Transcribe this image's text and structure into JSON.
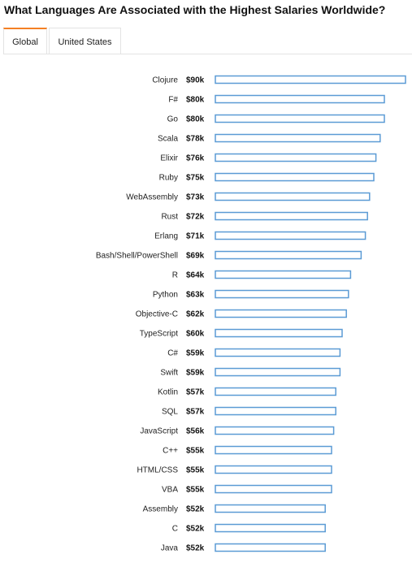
{
  "page": {
    "title": "What Languages Are Associated with the Highest Salaries Worldwide?"
  },
  "tabs": [
    {
      "label": "Global",
      "active": true
    },
    {
      "label": "United States",
      "active": false
    }
  ],
  "colors": {
    "accent": "#f48024",
    "bar_stroke": "#5b9bd5",
    "bar_fill": "#ffffff"
  },
  "chart_data": {
    "type": "bar",
    "orientation": "horizontal",
    "categories": [
      "Clojure",
      "F#",
      "Go",
      "Scala",
      "Elixir",
      "Ruby",
      "WebAssembly",
      "Rust",
      "Erlang",
      "Bash/Shell/PowerShell",
      "R",
      "Python",
      "Objective-C",
      "TypeScript",
      "C#",
      "Swift",
      "Kotlin",
      "SQL",
      "JavaScript",
      "C++",
      "HTML/CSS",
      "VBA",
      "Assembly",
      "C",
      "Java"
    ],
    "values": [
      90,
      80,
      80,
      78,
      76,
      75,
      73,
      72,
      71,
      69,
      64,
      63,
      62,
      60,
      59,
      59,
      57,
      57,
      56,
      55,
      55,
      55,
      52,
      52,
      52
    ],
    "value_labels": [
      "$90k",
      "$80k",
      "$80k",
      "$78k",
      "$76k",
      "$75k",
      "$73k",
      "$72k",
      "$71k",
      "$69k",
      "$64k",
      "$63k",
      "$62k",
      "$60k",
      "$59k",
      "$59k",
      "$57k",
      "$57k",
      "$56k",
      "$55k",
      "$55k",
      "$55k",
      "$52k",
      "$52k",
      "$52k"
    ],
    "title": "What Languages Are Associated with the Highest Salaries Worldwide?",
    "xlabel": "",
    "ylabel": "",
    "xlim": [
      0,
      90
    ],
    "grid": false,
    "legend": "none"
  }
}
